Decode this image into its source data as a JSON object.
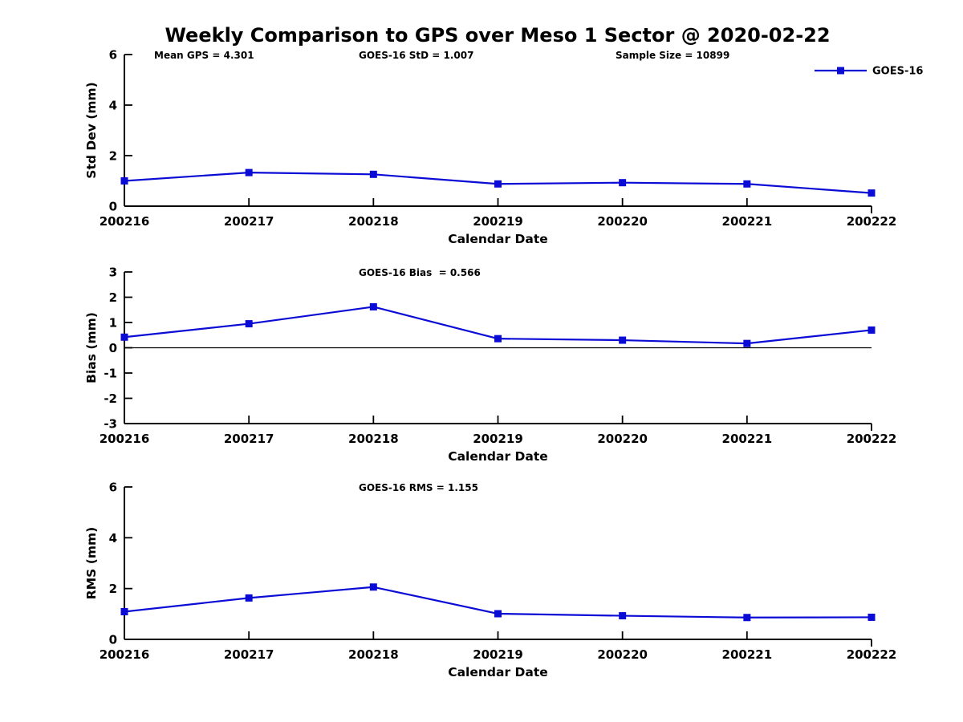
{
  "page": {
    "title": "Weekly Comparison to GPS over Meso 1 Sector @ 2020-02-22",
    "background": "#ffffff"
  },
  "colors": {
    "line": "#0b0bd6",
    "axis": "#000000",
    "text": "#000000"
  },
  "legend": {
    "label": "GOES-16",
    "position": "top-right"
  },
  "chart_data": [
    {
      "type": "line",
      "name": "std-dev",
      "title": "",
      "xlabel": "Calendar Date",
      "ylabel": "Std Dev (mm)",
      "ylim": [
        0,
        6
      ],
      "yticks": [
        0,
        2,
        4,
        6
      ],
      "grid": false,
      "categories": [
        "200216",
        "200217",
        "200218",
        "200219",
        "200220",
        "200221",
        "200222"
      ],
      "series": [
        {
          "name": "GOES-16",
          "values": [
            1.0,
            1.33,
            1.26,
            0.88,
            0.93,
            0.88,
            0.52
          ]
        }
      ],
      "annotations": [
        {
          "text": "Mean GPS = 4.301"
        },
        {
          "text": "GOES-16 StD = 1.007"
        },
        {
          "text": "Sample Size = 10899"
        }
      ],
      "legend_entries": [
        "GOES-16"
      ]
    },
    {
      "type": "line",
      "name": "bias",
      "title": "",
      "xlabel": "Calendar Date",
      "ylabel": "Bias (mm)",
      "ylim": [
        -3,
        3
      ],
      "yticks": [
        -3,
        -2,
        -1,
        0,
        1,
        2,
        3
      ],
      "zero_line": true,
      "grid": false,
      "categories": [
        "200216",
        "200217",
        "200218",
        "200219",
        "200220",
        "200221",
        "200222"
      ],
      "series": [
        {
          "name": "GOES-16",
          "values": [
            0.42,
            0.95,
            1.62,
            0.36,
            0.3,
            0.17,
            0.7
          ]
        }
      ],
      "annotations": [
        {
          "text": "GOES-16 Bias  = 0.566"
        }
      ]
    },
    {
      "type": "line",
      "name": "rms",
      "title": "",
      "xlabel": "Calendar Date",
      "ylabel": "RMS (mm)",
      "ylim": [
        0,
        6
      ],
      "yticks": [
        0,
        2,
        4,
        6
      ],
      "grid": false,
      "categories": [
        "200216",
        "200217",
        "200218",
        "200219",
        "200220",
        "200221",
        "200222"
      ],
      "series": [
        {
          "name": "GOES-16",
          "values": [
            1.09,
            1.63,
            2.06,
            1.01,
            0.93,
            0.86,
            0.87
          ]
        }
      ],
      "annotations": [
        {
          "text": "GOES-16 RMS = 1.155"
        }
      ]
    }
  ]
}
